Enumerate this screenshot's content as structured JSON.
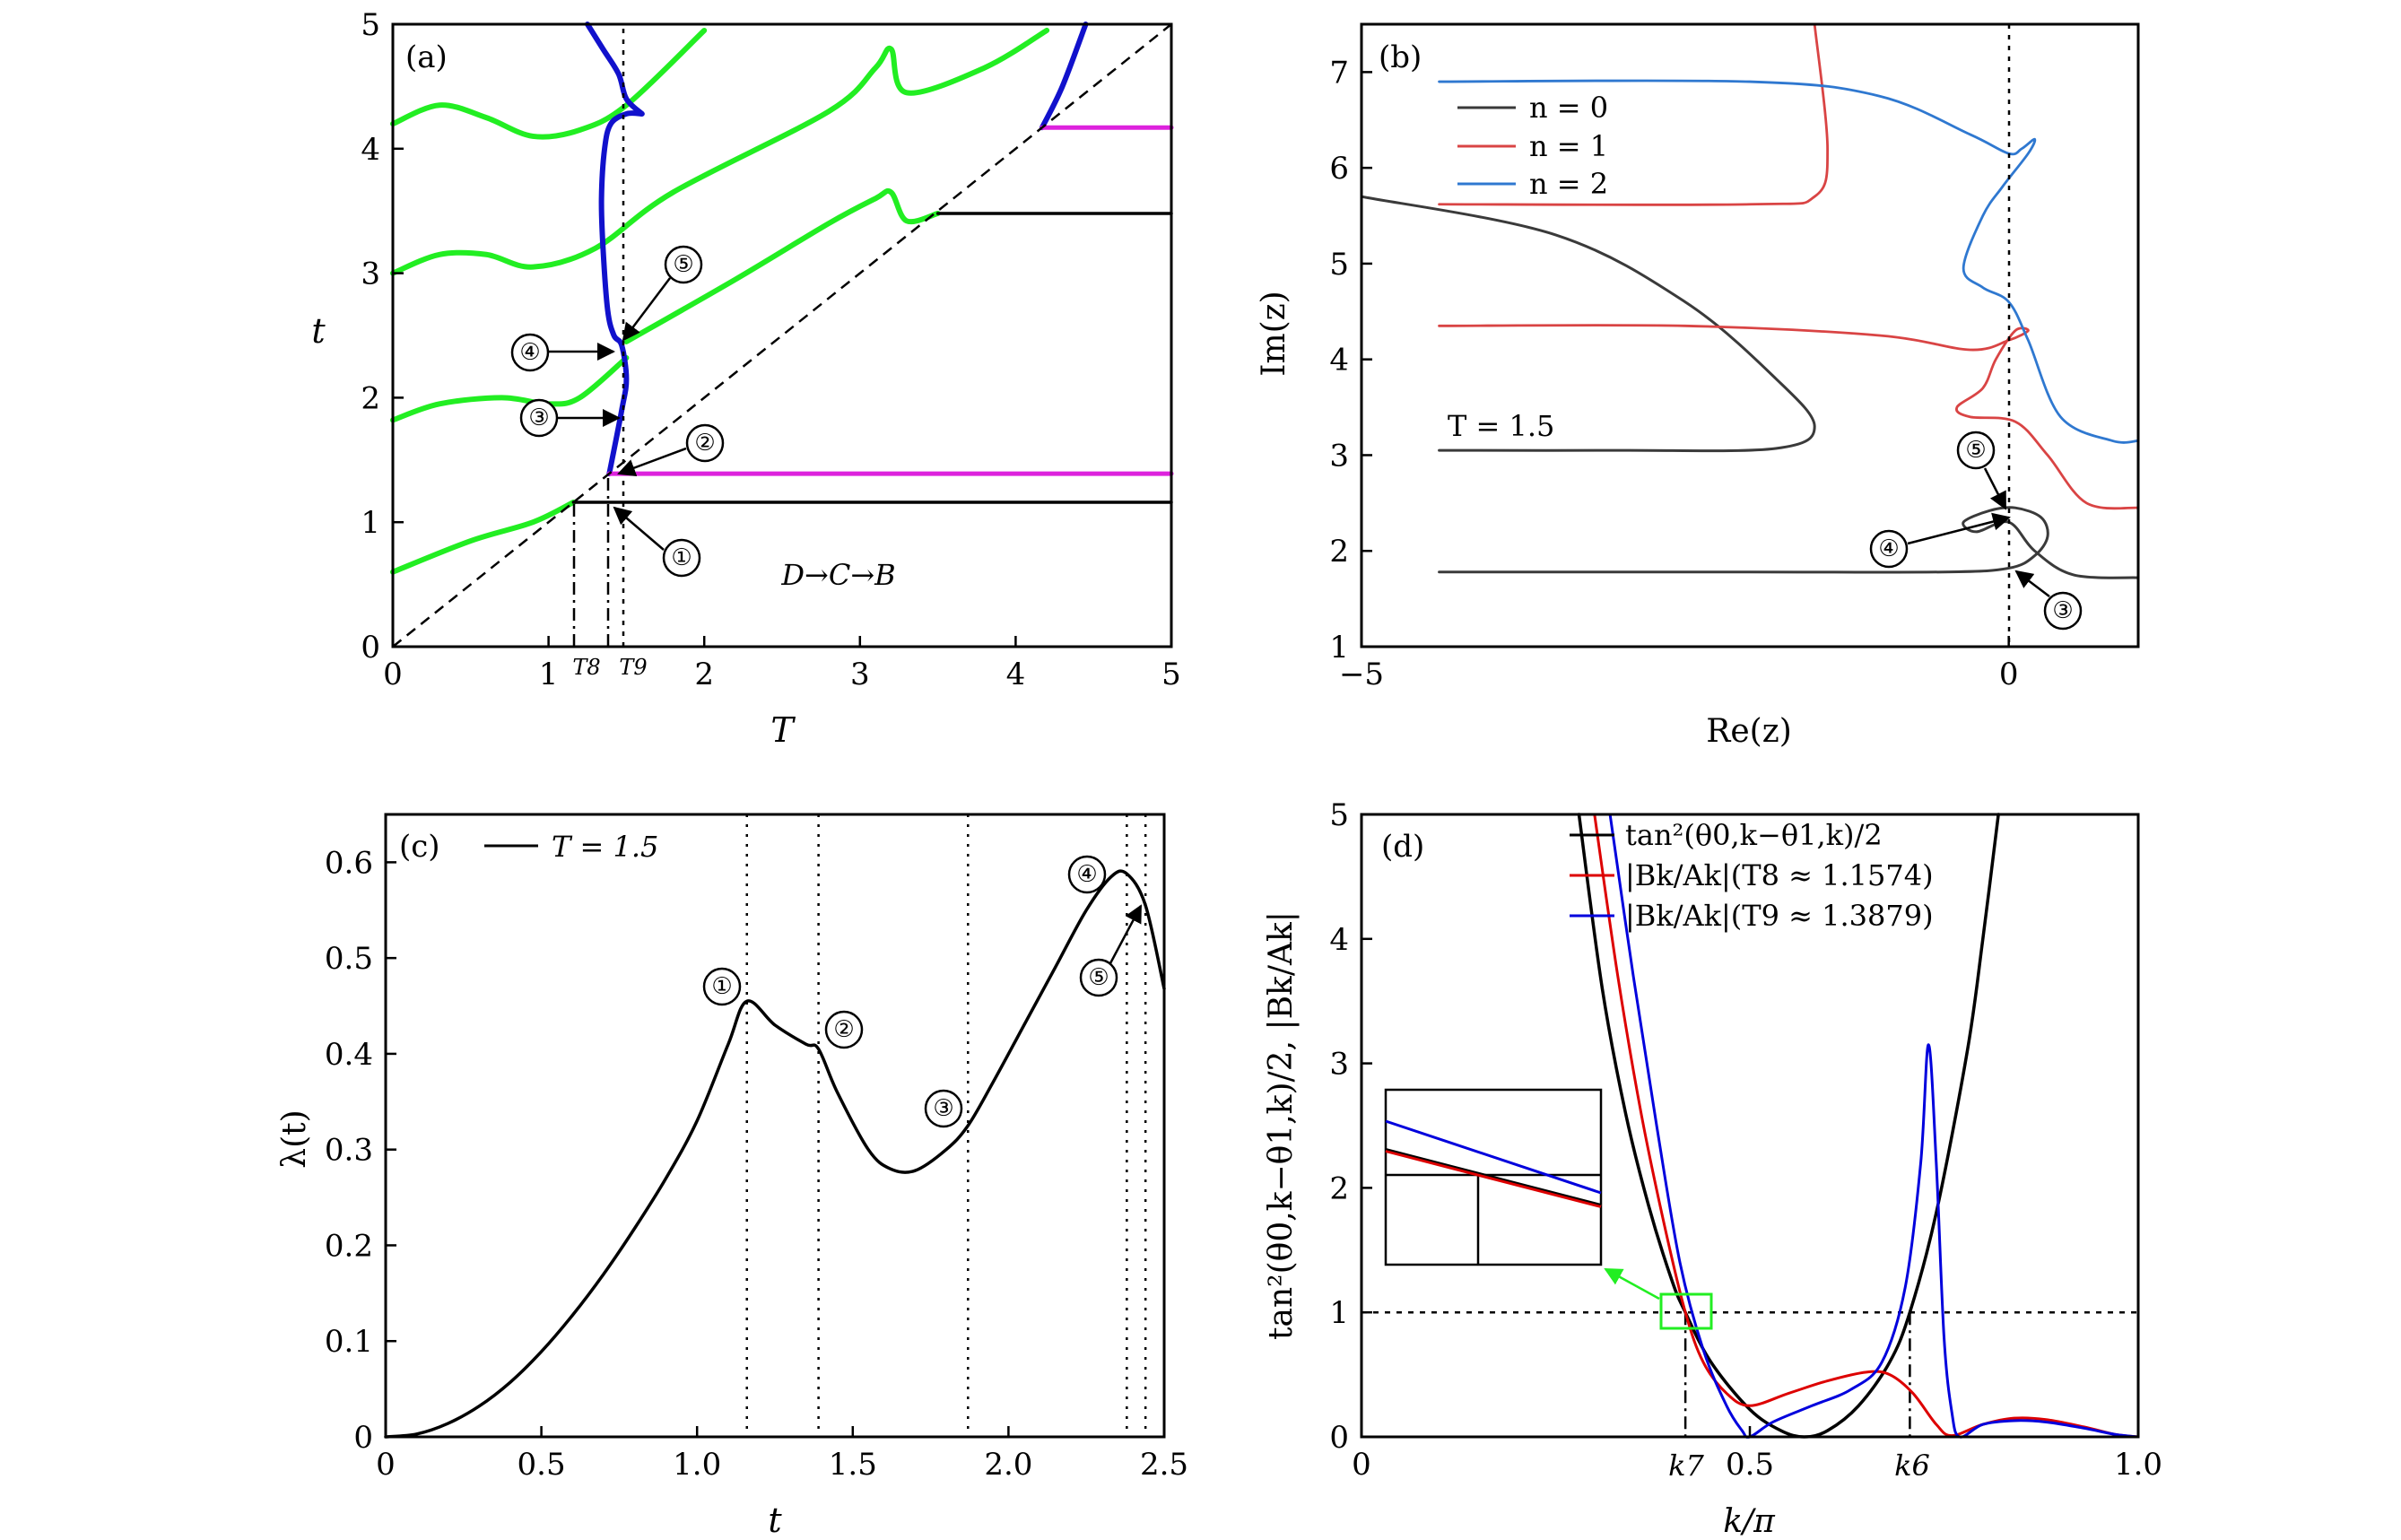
{
  "colors": {
    "green": "#22ee22",
    "blue": "#1111cc",
    "magenta": "#dd22dd",
    "black": "#000000",
    "gray": "#3a3a3a",
    "red": "#d94444",
    "lightblue": "#2f78d0",
    "pure_red": "#dd0000",
    "pure_blue": "#0000dd"
  },
  "chart_data": [
    {
      "id": "a",
      "type": "line",
      "panel_label": "(a)",
      "xlabel": "T",
      "ylabel": "t",
      "xlim": [
        0,
        5
      ],
      "ylim": [
        0,
        5
      ],
      "xticks": [
        "0",
        "1",
        "2",
        "3",
        "4",
        "5"
      ],
      "yticks": [
        "0",
        "1",
        "2",
        "3",
        "4",
        "5"
      ],
      "x_markers": [
        "T8",
        "T9"
      ],
      "x_marker_values": [
        1.1574,
        1.3879
      ],
      "annotation": "D→C→B",
      "circled_labels": [
        "①",
        "②",
        "③",
        "④",
        "⑤"
      ],
      "series": [
        {
          "color": "green",
          "points": [
            [
              0,
              0.6
            ],
            [
              0.5,
              0.85
            ],
            [
              0.9,
              1.0
            ],
            [
              1.16,
              1.16
            ]
          ]
        },
        {
          "color": "green",
          "points": [
            [
              0,
              1.82
            ],
            [
              0.3,
              1.95
            ],
            [
              0.7,
              2.0
            ],
            [
              1.0,
              1.95
            ],
            [
              1.2,
              2.0
            ],
            [
              1.5,
              2.32
            ]
          ]
        },
        {
          "color": "green",
          "points": [
            [
              1.5,
              2.45
            ],
            [
              2.2,
              2.95
            ],
            [
              2.8,
              3.4
            ],
            [
              3.1,
              3.6
            ],
            [
              3.2,
              3.65
            ],
            [
              3.3,
              3.42
            ],
            [
              3.5,
              3.48
            ]
          ]
        },
        {
          "color": "green",
          "points": [
            [
              0,
              3.0
            ],
            [
              0.3,
              3.15
            ],
            [
              0.6,
              3.15
            ],
            [
              0.9,
              3.05
            ],
            [
              1.3,
              3.2
            ],
            [
              1.8,
              3.65
            ],
            [
              2.8,
              4.3
            ],
            [
              3.1,
              4.65
            ],
            [
              3.2,
              4.8
            ],
            [
              3.3,
              4.45
            ],
            [
              3.8,
              4.65
            ],
            [
              4.2,
              4.95
            ]
          ]
        },
        {
          "color": "green",
          "points": [
            [
              0,
              4.2
            ],
            [
              0.3,
              4.35
            ],
            [
              0.6,
              4.25
            ],
            [
              0.9,
              4.1
            ],
            [
              1.2,
              4.15
            ],
            [
              1.5,
              4.35
            ],
            [
              2.0,
              4.95
            ]
          ]
        },
        {
          "color": "blue",
          "points": [
            [
              1.39,
              1.39
            ],
            [
              1.47,
              1.9
            ],
            [
              1.5,
              2.15
            ],
            [
              1.47,
              2.42
            ],
            [
              1.42,
              2.5
            ],
            [
              1.38,
              2.7
            ],
            [
              1.35,
              3.2
            ],
            [
              1.34,
              3.6
            ],
            [
              1.36,
              4.0
            ],
            [
              1.4,
              4.2
            ],
            [
              1.5,
              4.28
            ],
            [
              1.6,
              4.28
            ]
          ]
        },
        {
          "color": "blue",
          "points": [
            [
              1.6,
              4.28
            ],
            [
              1.5,
              4.4
            ],
            [
              1.45,
              4.6
            ],
            [
              1.35,
              4.8
            ],
            [
              1.25,
              5.0
            ]
          ]
        },
        {
          "color": "blue",
          "points": [
            [
              4.17,
              4.17
            ],
            [
              4.3,
              4.5
            ],
            [
              4.45,
              5.0
            ]
          ]
        },
        {
          "color": "magenta",
          "points": [
            [
              1.39,
              1.39
            ],
            [
              5,
              1.39
            ]
          ]
        },
        {
          "color": "magenta",
          "points": [
            [
              4.17,
              4.17
            ],
            [
              5,
              4.17
            ]
          ]
        },
        {
          "color": "black",
          "points": [
            [
              1.16,
              1.16
            ],
            [
              5,
              1.16
            ]
          ]
        },
        {
          "color": "black",
          "points": [
            [
              3.5,
              3.48
            ],
            [
              5,
              3.48
            ]
          ]
        }
      ]
    },
    {
      "id": "b",
      "type": "line",
      "panel_label": "(b)",
      "xlabel": "Re(z)",
      "ylabel": "Im(z)",
      "xlim": [
        -5,
        1
      ],
      "ylim": [
        1,
        7.5
      ],
      "xticks": [
        "−5",
        "0"
      ],
      "yticks": [
        "1",
        "2",
        "3",
        "4",
        "5",
        "6",
        "7"
      ],
      "annotation": "T = 1.5",
      "legend": [
        "n = 0",
        "n = 1",
        "n = 2"
      ],
      "circled_labels": [
        "③",
        "④",
        "⑤"
      ],
      "series": [
        {
          "name": "n = 0",
          "color": "gray",
          "points": [
            [
              -4.4,
              1.78
            ],
            [
              -2,
              1.78
            ],
            [
              -0.5,
              1.78
            ],
            [
              0,
              1.82
            ],
            [
              0.2,
              1.95
            ],
            [
              0.3,
              2.15
            ],
            [
              0.25,
              2.35
            ],
            [
              0.05,
              2.45
            ],
            [
              -0.15,
              2.42
            ],
            [
              -0.35,
              2.3
            ],
            [
              -0.25,
              2.2
            ],
            [
              0,
              2.3
            ],
            [
              0.2,
              2.0
            ],
            [
              0.5,
              1.75
            ],
            [
              1,
              1.72
            ]
          ]
        },
        {
          "name": "n = 0",
          "color": "gray",
          "points": [
            [
              -5,
              5.7
            ],
            [
              -3.5,
              5.3
            ],
            [
              -2.5,
              4.6
            ],
            [
              -1.8,
              3.8
            ],
            [
              -1.5,
              3.3
            ],
            [
              -1.8,
              3.07
            ],
            [
              -3,
              3.05
            ],
            [
              -4.4,
              3.05
            ]
          ]
        },
        {
          "name": "n = 1",
          "color": "red",
          "points": [
            [
              -4.4,
              4.35
            ],
            [
              -2.5,
              4.35
            ],
            [
              -1,
              4.25
            ],
            [
              -0.3,
              4.1
            ],
            [
              0,
              4.2
            ],
            [
              0.15,
              4.3
            ],
            [
              0.05,
              4.3
            ],
            [
              -0.1,
              4.0
            ],
            [
              -0.2,
              3.7
            ],
            [
              -0.4,
              3.5
            ],
            [
              -0.3,
              3.4
            ],
            [
              0.05,
              3.35
            ],
            [
              0.3,
              3.0
            ],
            [
              0.6,
              2.5
            ],
            [
              1,
              2.45
            ]
          ]
        },
        {
          "name": "n = 1",
          "color": "red",
          "points": [
            [
              -4.4,
              5.62
            ],
            [
              -2,
              5.62
            ],
            [
              -1.5,
              5.7
            ],
            [
              -1.4,
              6.2
            ],
            [
              -1.5,
              7.5
            ]
          ]
        },
        {
          "name": "n = 2",
          "color": "lightblue",
          "points": [
            [
              -4.4,
              6.9
            ],
            [
              -2,
              6.9
            ],
            [
              -1,
              6.75
            ],
            [
              -0.3,
              6.35
            ],
            [
              0,
              6.15
            ],
            [
              0.1,
              6.2
            ],
            [
              0.2,
              6.3
            ],
            [
              0.15,
              6.15
            ],
            [
              -0.05,
              5.8
            ],
            [
              -0.2,
              5.5
            ],
            [
              -0.35,
              4.95
            ],
            [
              -0.2,
              4.75
            ],
            [
              0,
              4.6
            ],
            [
              0.15,
              4.2
            ],
            [
              0.4,
              3.4
            ],
            [
              0.8,
              3.15
            ],
            [
              1,
              3.15
            ]
          ]
        }
      ]
    },
    {
      "id": "c",
      "type": "line",
      "panel_label": "(c)",
      "xlabel": "t",
      "ylabel": "λ(t)",
      "xlim": [
        0,
        2.5
      ],
      "ylim": [
        0,
        0.65
      ],
      "xticks": [
        "0",
        "0.5",
        "1.0",
        "1.5",
        "2.0",
        "2.5"
      ],
      "yticks": [
        "0",
        "0.1",
        "0.2",
        "0.3",
        "0.4",
        "0.5",
        "0.6"
      ],
      "legend": [
        "T = 1.5"
      ],
      "vlines": [
        1.16,
        1.39,
        1.87,
        2.38,
        2.44
      ],
      "circled_labels": [
        "①",
        "②",
        "③",
        "④",
        "⑤"
      ],
      "series": [
        {
          "name": "T = 1.5",
          "color": "black",
          "points": [
            [
              0,
              0
            ],
            [
              0.1,
              0.003
            ],
            [
              0.2,
              0.014
            ],
            [
              0.3,
              0.032
            ],
            [
              0.4,
              0.057
            ],
            [
              0.5,
              0.089
            ],
            [
              0.6,
              0.127
            ],
            [
              0.7,
              0.17
            ],
            [
              0.8,
              0.218
            ],
            [
              0.9,
              0.27
            ],
            [
              1.0,
              0.33
            ],
            [
              1.1,
              0.41
            ],
            [
              1.16,
              0.455
            ],
            [
              1.25,
              0.43
            ],
            [
              1.35,
              0.41
            ],
            [
              1.39,
              0.405
            ],
            [
              1.45,
              0.36
            ],
            [
              1.55,
              0.3
            ],
            [
              1.62,
              0.28
            ],
            [
              1.7,
              0.278
            ],
            [
              1.8,
              0.3
            ],
            [
              1.87,
              0.325
            ],
            [
              1.95,
              0.37
            ],
            [
              2.05,
              0.43
            ],
            [
              2.15,
              0.49
            ],
            [
              2.25,
              0.55
            ],
            [
              2.33,
              0.585
            ],
            [
              2.38,
              0.588
            ],
            [
              2.44,
              0.555
            ],
            [
              2.5,
              0.468
            ]
          ]
        }
      ]
    },
    {
      "id": "d",
      "type": "line",
      "panel_label": "(d)",
      "xlabel": "k/π",
      "ylabel": "tan²(θ0,k−θ1,k)/2, |Bk/Ak|",
      "xlim": [
        0,
        1
      ],
      "ylim": [
        0,
        5
      ],
      "xticks": [
        "0",
        "0.5",
        "1.0"
      ],
      "yticks": [
        "0",
        "1",
        "2",
        "3",
        "4",
        "5"
      ],
      "x_markers": [
        "k7",
        "k6"
      ],
      "x_marker_values": [
        0.417,
        0.706
      ],
      "hline": 1,
      "legend": [
        "tan²(θ0,k−θ1,k)/2",
        "|Bk/Ak|(T8 ≈ 1.1574)",
        "|Bk/Ak|(T9 ≈ 1.3879)"
      ],
      "series": [
        {
          "name": "tan²(θ0,k−θ1,k)/2",
          "color": "black",
          "points": [
            [
              0.28,
              5
            ],
            [
              0.31,
              3.6
            ],
            [
              0.34,
              2.6
            ],
            [
              0.37,
              1.85
            ],
            [
              0.4,
              1.25
            ],
            [
              0.417,
              1.0
            ],
            [
              0.45,
              0.6
            ],
            [
              0.5,
              0.22
            ],
            [
              0.54,
              0.05
            ],
            [
              0.57,
              0.0
            ],
            [
              0.6,
              0.05
            ],
            [
              0.64,
              0.25
            ],
            [
              0.68,
              0.6
            ],
            [
              0.706,
              1.0
            ],
            [
              0.74,
              1.8
            ],
            [
              0.78,
              3.1
            ],
            [
              0.8,
              4.0
            ],
            [
              0.82,
              5
            ]
          ]
        },
        {
          "name": "|Bk/Ak|(T8 ≈ 1.1574)",
          "color": "pure_red",
          "points": [
            [
              0.3,
              5
            ],
            [
              0.33,
              3.7
            ],
            [
              0.36,
              2.6
            ],
            [
              0.39,
              1.7
            ],
            [
              0.417,
              1.0
            ],
            [
              0.44,
              0.6
            ],
            [
              0.47,
              0.35
            ],
            [
              0.5,
              0.25
            ],
            [
              0.55,
              0.35
            ],
            [
              0.6,
              0.45
            ],
            [
              0.65,
              0.52
            ],
            [
              0.68,
              0.5
            ],
            [
              0.71,
              0.35
            ],
            [
              0.74,
              0.1
            ],
            [
              0.76,
              0.01
            ],
            [
              0.8,
              0.1
            ],
            [
              0.84,
              0.15
            ],
            [
              0.88,
              0.14
            ],
            [
              0.93,
              0.08
            ],
            [
              0.97,
              0.02
            ],
            [
              1.0,
              0
            ]
          ]
        },
        {
          "name": "|Bk/Ak|(T9 ≈ 1.3879)",
          "color": "pure_blue",
          "points": [
            [
              0.32,
              5
            ],
            [
              0.35,
              3.7
            ],
            [
              0.38,
              2.5
            ],
            [
              0.41,
              1.4
            ],
            [
              0.44,
              0.7
            ],
            [
              0.47,
              0.25
            ],
            [
              0.49,
              0.05
            ],
            [
              0.5,
              0.0
            ],
            [
              0.53,
              0.12
            ],
            [
              0.58,
              0.25
            ],
            [
              0.63,
              0.38
            ],
            [
              0.67,
              0.6
            ],
            [
              0.7,
              1.2
            ],
            [
              0.72,
              2.2
            ],
            [
              0.73,
              3.15
            ],
            [
              0.74,
              2.2
            ],
            [
              0.75,
              0.8
            ],
            [
              0.76,
              0.2
            ],
            [
              0.77,
              0.0
            ],
            [
              0.8,
              0.1
            ],
            [
              0.84,
              0.13
            ],
            [
              0.88,
              0.12
            ],
            [
              0.93,
              0.07
            ],
            [
              0.97,
              0.02
            ],
            [
              1.0,
              0
            ]
          ]
        }
      ]
    }
  ]
}
